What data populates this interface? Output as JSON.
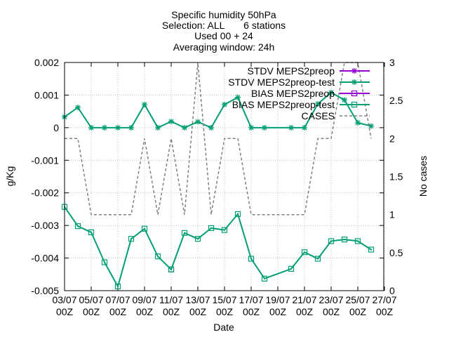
{
  "chart_data": {
    "type": "line",
    "title_lines": [
      "Specific humidity 50hPa",
      "Selection: ALL       6 stations",
      "Used 00 + 24",
      "Averaging window: 24h"
    ],
    "xlabel": "Date",
    "ylabel": "g/Kg",
    "y2label": "No cases",
    "ylim": [
      -0.005,
      0.002
    ],
    "y2lim": [
      0,
      3
    ],
    "yticks": [
      "0.002",
      "0.001",
      "0",
      "-0.001",
      "-0.002",
      "-0.003",
      "-0.004",
      "-0.005"
    ],
    "y2ticks": [
      "3",
      "2.5",
      "2",
      "1.5",
      "1",
      "0.5",
      "0"
    ],
    "xticks": [
      {
        "x": 0,
        "l1": "03/07",
        "l2": "00Z"
      },
      {
        "x": 2,
        "l1": "05/07",
        "l2": "00Z"
      },
      {
        "x": 4,
        "l1": "07/07",
        "l2": "00Z"
      },
      {
        "x": 6,
        "l1": "09/07",
        "l2": "00Z"
      },
      {
        "x": 8,
        "l1": "11/07",
        "l2": "00Z"
      },
      {
        "x": 10,
        "l1": "13/07",
        "l2": "00Z"
      },
      {
        "x": 12,
        "l1": "15/07",
        "l2": "00Z"
      },
      {
        "x": 14,
        "l1": "17/07",
        "l2": "00Z"
      },
      {
        "x": 16,
        "l1": "19/07",
        "l2": "00Z"
      },
      {
        "x": 18,
        "l1": "21/07",
        "l2": "00Z"
      },
      {
        "x": 20,
        "l1": "23/07",
        "l2": "00Z"
      },
      {
        "x": 22,
        "l1": "25/07",
        "l2": "00Z"
      },
      {
        "x": 24,
        "l1": "27/07",
        "l2": "00Z"
      }
    ],
    "xrange": [
      0,
      24
    ],
    "legend_position": "top-right",
    "series": [
      {
        "name": "STDV MEPS2preop",
        "color": "#9400d3",
        "marker": "star",
        "axis": "y1",
        "dash": false,
        "points": []
      },
      {
        "name": "STDV MEPS2preop-test",
        "color": "#009e73",
        "marker": "star",
        "axis": "y1",
        "dash": false,
        "points": [
          [
            0,
            0.00033
          ],
          [
            1,
            0.00062
          ],
          [
            2,
            0.0
          ],
          [
            3,
            0.0
          ],
          [
            4,
            0.0
          ],
          [
            5,
            0.0
          ],
          [
            6,
            0.00071
          ],
          [
            7,
            0.0
          ],
          [
            8,
            0.00019
          ],
          [
            9,
            0.0
          ],
          [
            10,
            0.00018
          ],
          [
            11,
            0.0
          ],
          [
            12,
            0.00071
          ],
          [
            13,
            0.00093
          ],
          [
            14,
            0.0
          ],
          [
            15,
            0.0
          ],
          [
            17,
            0.0
          ],
          [
            18,
            0.0
          ],
          [
            19,
            0.00073
          ],
          [
            20,
            0.00108
          ],
          [
            21,
            0.00085
          ],
          [
            22,
            0.00015
          ],
          [
            23,
            5e-05
          ]
        ]
      },
      {
        "name": "BIAS MEPS2preop",
        "color": "#9400d3",
        "marker": "square",
        "axis": "y1",
        "dash": false,
        "points": [
          [
            8,
            -0.00435
          ]
        ]
      },
      {
        "name": "BIAS MEPS2preop-test",
        "color": "#009e73",
        "marker": "square",
        "axis": "y1",
        "dash": false,
        "points": [
          [
            0,
            -0.00243
          ],
          [
            1,
            -0.00302
          ],
          [
            2,
            -0.00321
          ],
          [
            3,
            -0.00413
          ],
          [
            4,
            -0.00487
          ],
          [
            5,
            -0.00341
          ],
          [
            6,
            -0.0031
          ],
          [
            7,
            -0.00395
          ],
          [
            8,
            -0.00435
          ],
          [
            9,
            -0.00323
          ],
          [
            10,
            -0.00341
          ],
          [
            11,
            -0.00308
          ],
          [
            12,
            -0.00314
          ],
          [
            13,
            -0.00265
          ],
          [
            14,
            -0.00402
          ],
          [
            15,
            -0.00463
          ],
          [
            17,
            -0.00433
          ],
          [
            18,
            -0.00382
          ],
          [
            19,
            -0.00402
          ],
          [
            20,
            -0.00348
          ],
          [
            21,
            -0.00343
          ],
          [
            22,
            -0.00348
          ],
          [
            23,
            -0.00374
          ]
        ]
      },
      {
        "name": "CASES",
        "color": "#808080",
        "marker": "none",
        "axis": "y2",
        "dash": true,
        "points": [
          [
            0,
            2
          ],
          [
            1,
            2
          ],
          [
            2,
            1
          ],
          [
            3,
            1
          ],
          [
            4,
            1
          ],
          [
            5,
            1
          ],
          [
            6,
            2
          ],
          [
            7,
            1
          ],
          [
            8,
            2
          ],
          [
            9,
            1
          ],
          [
            10,
            3
          ],
          [
            11,
            1
          ],
          [
            12,
            2
          ],
          [
            13,
            2
          ],
          [
            14,
            1
          ],
          [
            15,
            1
          ],
          [
            16,
            1
          ],
          [
            17,
            1
          ],
          [
            18,
            1
          ],
          [
            19,
            2
          ],
          [
            20,
            2
          ],
          [
            21,
            3
          ],
          [
            22,
            3
          ],
          [
            23,
            2
          ]
        ]
      }
    ]
  }
}
